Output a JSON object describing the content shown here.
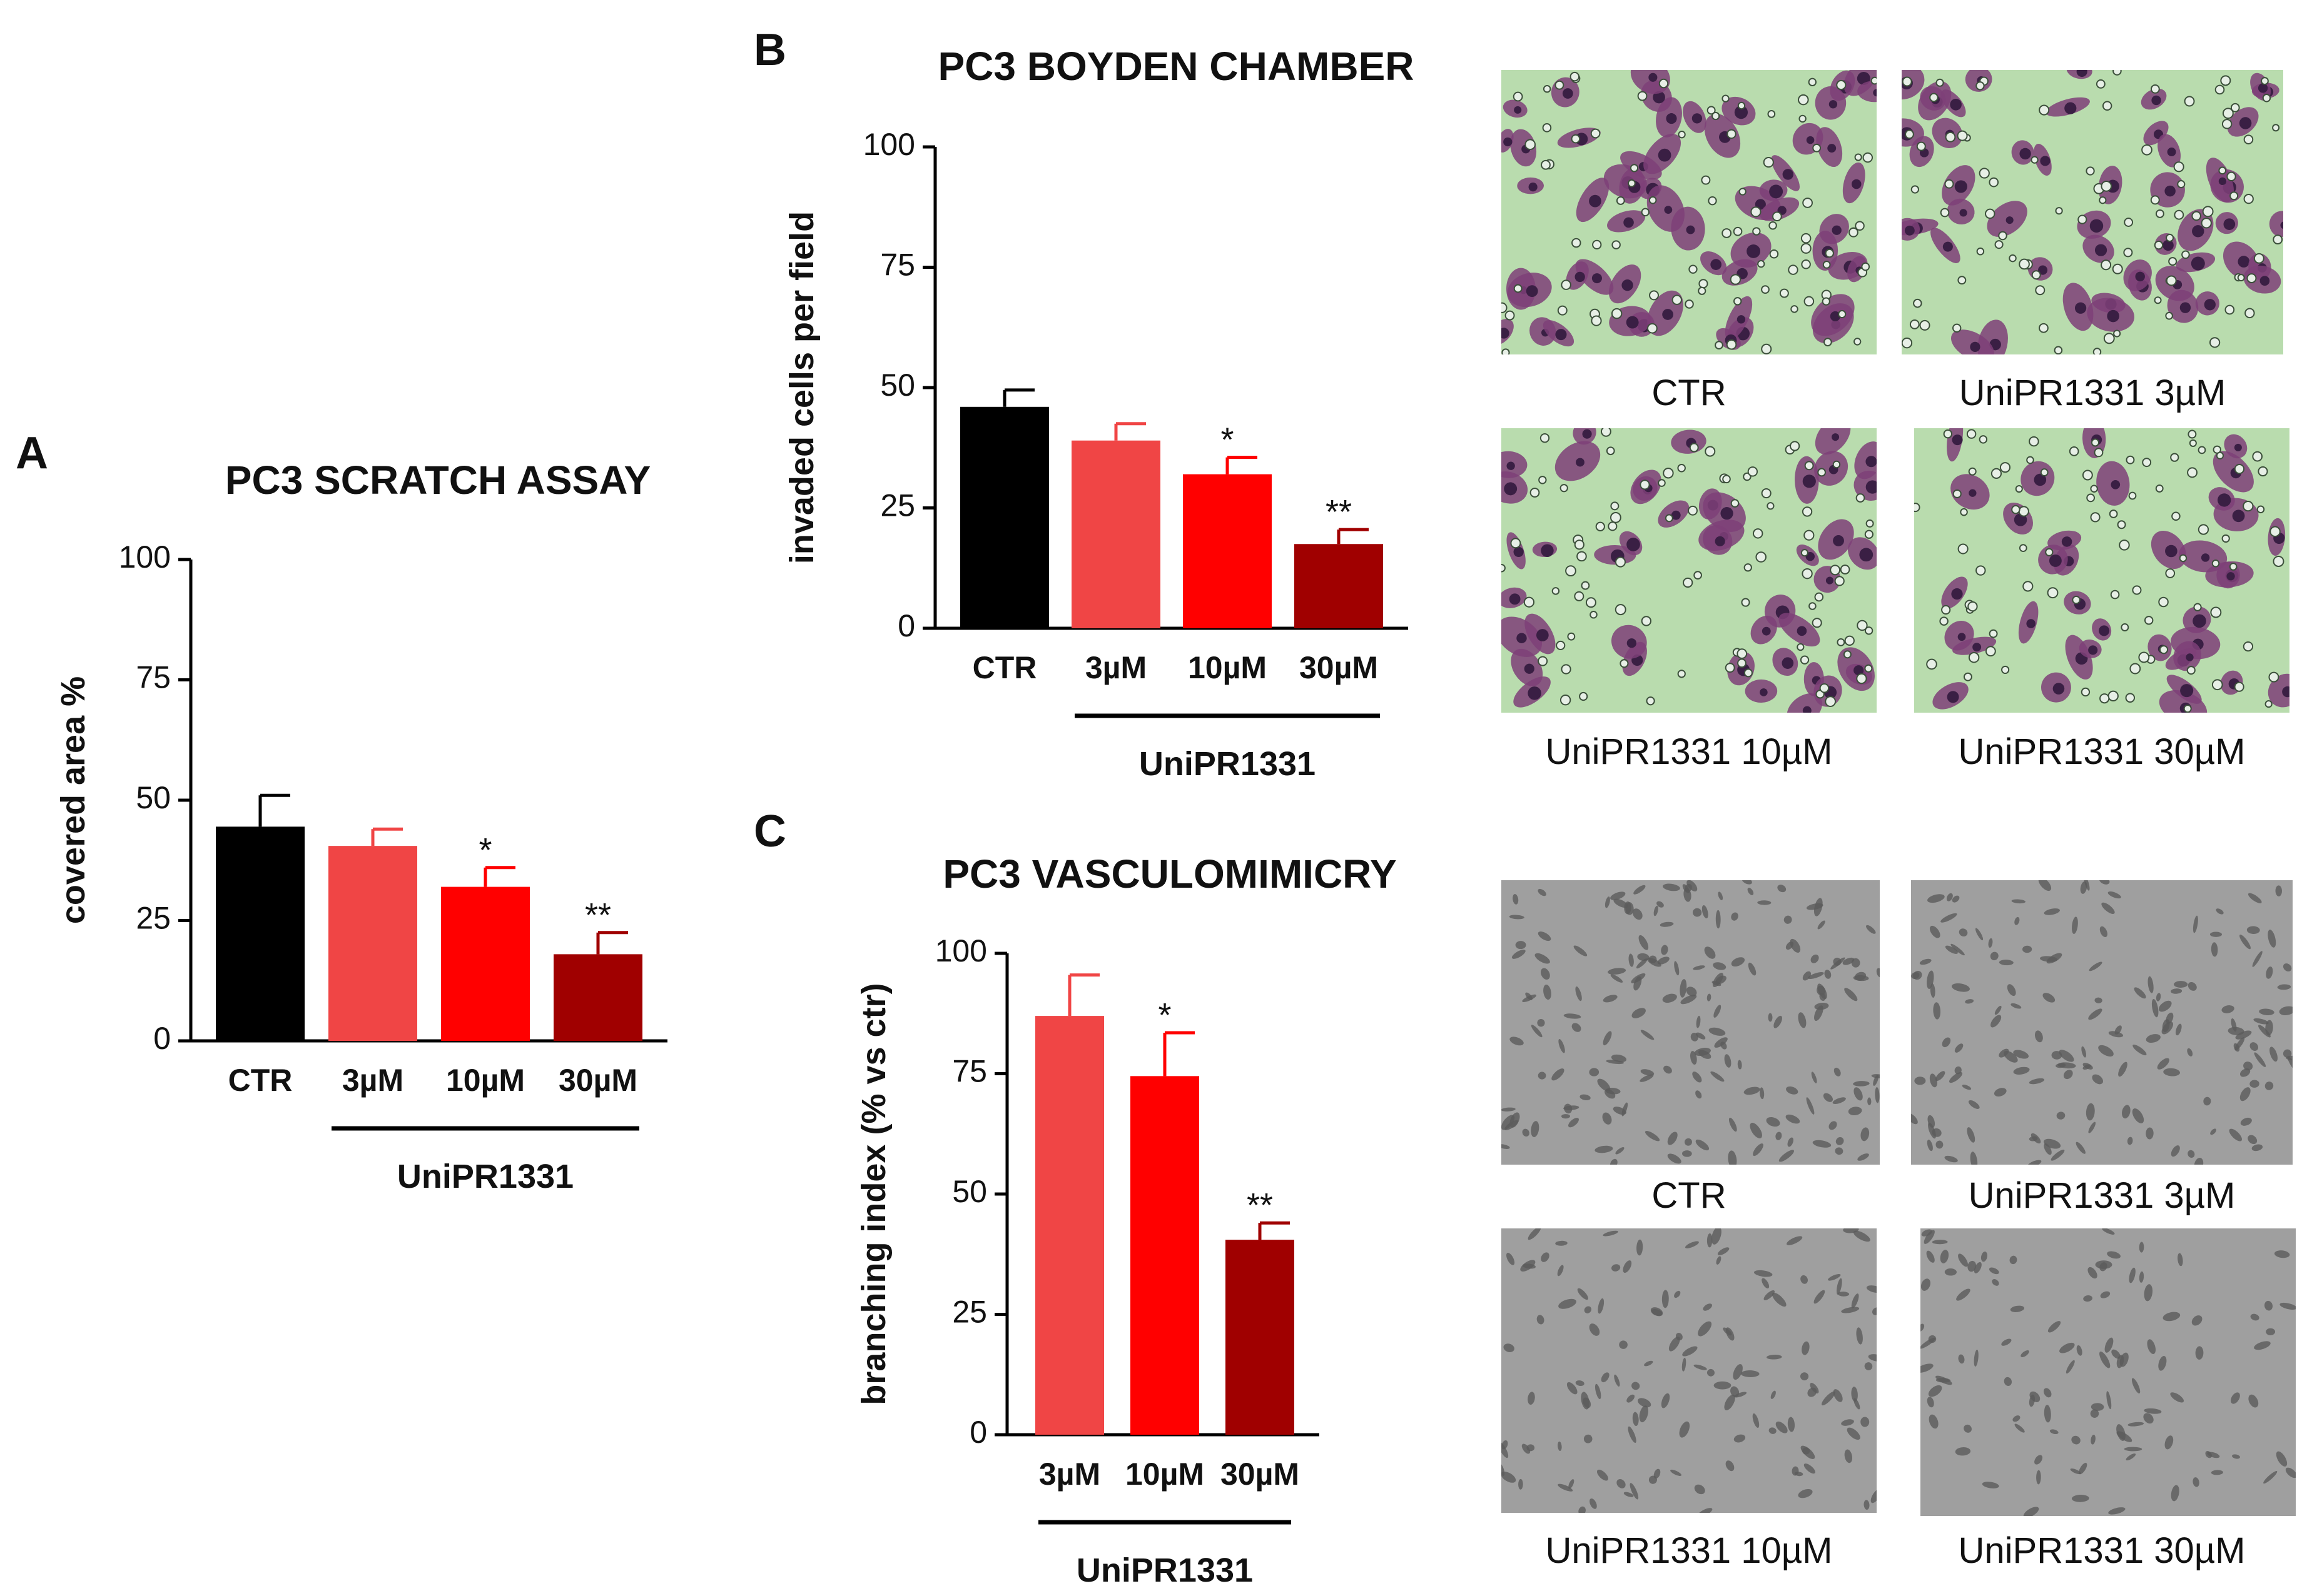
{
  "figure": {
    "panel_labels": [
      "A",
      "B",
      "C"
    ],
    "image_panels": {
      "boyden": {
        "captions": [
          "CTR",
          "UniPR1331 3µM",
          "UniPR1331 10µM",
          "UniPR1331 30µM"
        ],
        "style": "stained",
        "colors": {
          "background": "#b9dcae",
          "cell": "#7e3f78",
          "nucleus": "#3a1f44",
          "bead": "#e7efe6"
        }
      },
      "vasculo": {
        "captions": [
          "CTR",
          "UniPR1331 3µM",
          "UniPR1331 10µM",
          "UniPR1331 30µM"
        ],
        "style": "phase",
        "colors": {
          "background": "#8f8f8f",
          "cell": "#5b5b5b",
          "highlight": "#cfcfcf"
        }
      }
    }
  },
  "chart_data": [
    {
      "panel": "A",
      "type": "bar",
      "title": "PC3 SCRATCH ASSAY",
      "xlabel": "",
      "ylabel": "covered area %",
      "group_label": "UniPR1331",
      "categories": [
        "CTR",
        "3µM",
        "10µM",
        "30µM"
      ],
      "values": [
        44.5,
        40.5,
        32,
        18
      ],
      "errors": [
        6.5,
        3.5,
        4,
        4.5
      ],
      "significance": [
        "",
        "",
        "*",
        "**"
      ],
      "colors": [
        "#000000",
        "#f04545",
        "#ff0000",
        "#a00000"
      ],
      "ylim": [
        0,
        100
      ],
      "yticks": [
        "0",
        "25",
        "50",
        "75",
        "100"
      ],
      "grid": false,
      "legend": "none"
    },
    {
      "panel": "B",
      "type": "bar",
      "title": "PC3 BOYDEN CHAMBER",
      "xlabel": "",
      "ylabel": "invaded cells per field",
      "group_label": "UniPR1331",
      "categories": [
        "CTR",
        "3µM",
        "10µM",
        "30µM"
      ],
      "values": [
        46,
        39,
        32,
        17.5
      ],
      "errors": [
        3.5,
        3.5,
        3.5,
        3
      ],
      "significance": [
        "",
        "",
        "*",
        "**"
      ],
      "colors": [
        "#000000",
        "#f04545",
        "#ff0000",
        "#a00000"
      ],
      "ylim": [
        0,
        100
      ],
      "yticks": [
        "0",
        "25",
        "50",
        "75",
        "100"
      ],
      "grid": false,
      "legend": "none"
    },
    {
      "panel": "C",
      "type": "bar",
      "title": "PC3 VASCULOMIMICRY",
      "xlabel": "",
      "ylabel": "branching index (% vs ctr)",
      "group_label": "UniPR1331",
      "categories": [
        "3µM",
        "10µM",
        "30µM"
      ],
      "values": [
        87,
        74.5,
        40.5
      ],
      "errors": [
        8.5,
        9,
        3.5
      ],
      "significance": [
        "",
        "*",
        "**"
      ],
      "colors": [
        "#f04545",
        "#ff0000",
        "#a00000"
      ],
      "ylim": [
        0,
        100
      ],
      "yticks": [
        "0",
        "25",
        "50",
        "75",
        "100"
      ],
      "grid": false,
      "legend": "none"
    }
  ]
}
